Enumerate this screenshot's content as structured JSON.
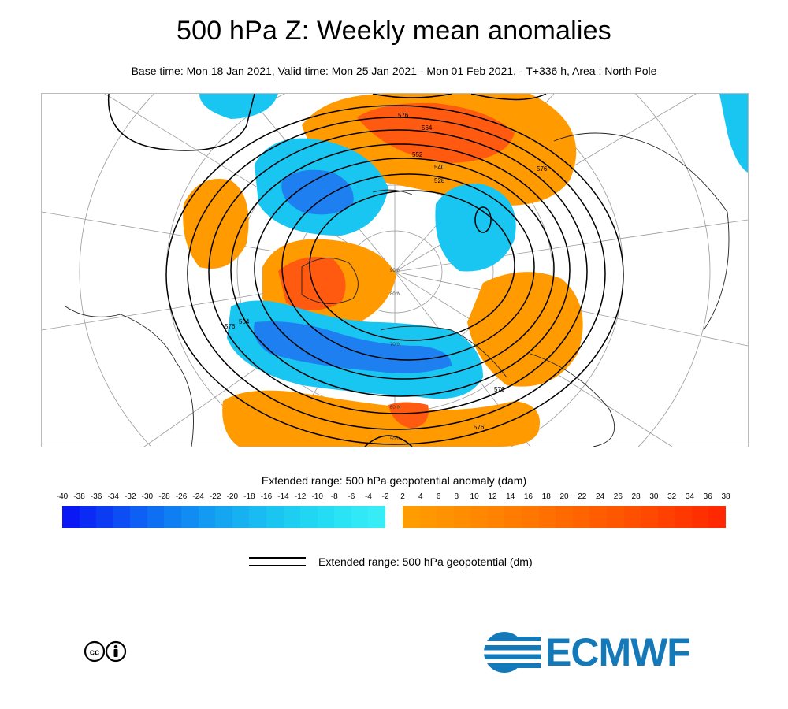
{
  "header": {
    "title": "500 hPa Z: Weekly mean anomalies",
    "subtitle": "Base time: Mon 18 Jan 2021, Valid time: Mon 25 Jan 2021 - Mon 01 Feb 2021, - T+336 h, Area : North Pole"
  },
  "map": {
    "projection": "polar stereographic, North Pole",
    "anomaly_field": "500 hPa geopotential anomaly (dam)",
    "contour_field": "500 hPa geopotential (dm)",
    "contour_labels": [
      "576",
      "564",
      "552",
      "540",
      "528",
      "576",
      "576",
      "564",
      "576",
      "576",
      "576"
    ],
    "latitude_labels": [
      "90°N",
      "80°N",
      "70°N",
      "60°N",
      "50°N"
    ],
    "colors": {
      "negative_anomaly": "#19c6f2",
      "strong_negative_anomaly": "#1e7ff0",
      "positive_anomaly": "#ff9a00",
      "strong_positive_anomaly": "#ff5a10",
      "contour_line": "#000000",
      "coastline": "#222222",
      "graticule": "#9a9a9a"
    }
  },
  "legend": {
    "title": "Extended range: 500 hPa geopotential anomaly (dam)",
    "ticks": [
      "-40",
      "-38",
      "-36",
      "-34",
      "-32",
      "-30",
      "-28",
      "-26",
      "-24",
      "-22",
      "-20",
      "-18",
      "-16",
      "-14",
      "-12",
      "-10",
      "-8",
      "-6",
      "-4",
      "-2",
      "2",
      "4",
      "6",
      "8",
      "10",
      "12",
      "14",
      "16",
      "18",
      "20",
      "22",
      "24",
      "26",
      "28",
      "30",
      "32",
      "34",
      "36",
      "38"
    ],
    "negative_colors": [
      "#0a18f5",
      "#0a2af5",
      "#0b3cf4",
      "#0c4ef4",
      "#0d60f3",
      "#0e6ff3",
      "#0f7ef2",
      "#118cf2",
      "#139af2",
      "#15a6f2",
      "#17b1f2",
      "#19bbf2",
      "#1bc5f2",
      "#1dcef2",
      "#20d6f3",
      "#24ddf4",
      "#2ae3f5",
      "#30e8f6",
      "#36ecf7"
    ],
    "positive_colors": [
      "#ff9c00",
      "#ff9700",
      "#ff9200",
      "#ff8d00",
      "#ff8800",
      "#ff8200",
      "#ff7c00",
      "#ff7600",
      "#ff7000",
      "#ff6a00",
      "#ff6400",
      "#ff5d00",
      "#ff5600",
      "#ff4f00",
      "#ff4800",
      "#ff4000",
      "#ff3800",
      "#ff3000",
      "#ff2800"
    ],
    "contour_legend_label": "Extended range: 500 hPa geopotential (dm)"
  },
  "footer": {
    "license_badge": "cc-by-icon",
    "logo_text": "ECMWF",
    "logo_color": "#1479b8"
  }
}
